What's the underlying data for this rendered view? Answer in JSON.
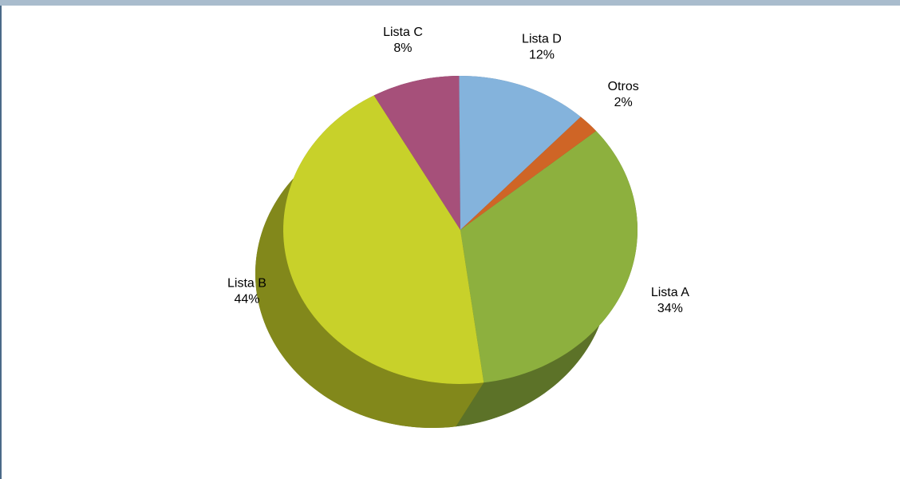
{
  "chart_data": {
    "type": "pie3d",
    "categories": [
      "Lista A",
      "Lista B",
      "Lista C",
      "Lista D",
      "Otros"
    ],
    "values": [
      34,
      44,
      8,
      12,
      2
    ],
    "value_labels": [
      "34%",
      "44%",
      "8%",
      "12%",
      "2%"
    ],
    "colors": [
      "#8db03e",
      "#c8d12a",
      "#a6507a",
      "#84b3dc",
      "#cf6526"
    ]
  }
}
